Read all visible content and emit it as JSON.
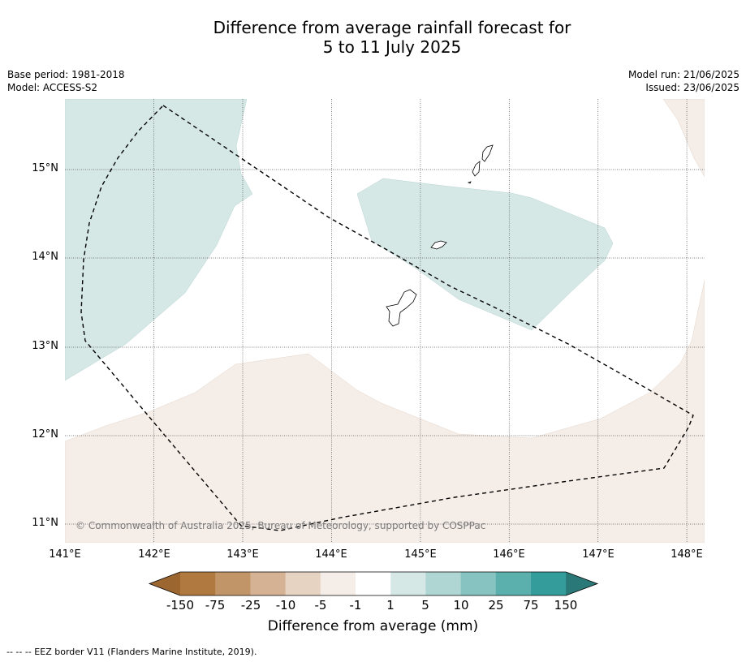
{
  "title": {
    "line1": "Difference from average rainfall forecast for",
    "line2": "5 to 11 July 2025"
  },
  "meta": {
    "base_period": "Base period: 1981-2018",
    "model": "Model: ACCESS-S2",
    "model_run": "Model run: 21/06/2025",
    "issued": "Issued: 23/06/2025"
  },
  "map": {
    "lat_labels": [
      "15°N",
      "14°N",
      "13°N",
      "12°N",
      "11°N"
    ],
    "lon_labels": [
      "141°E",
      "142°E",
      "143°E",
      "144°E",
      "145°E",
      "146°E",
      "147°E",
      "148°E"
    ],
    "copyright": "© Commonwealth of Australia 2025, Bureau of Meteorology, supported by COSPPac",
    "colors": {
      "dry_light": "#f5ede8",
      "wet_light": "#d5e8e6",
      "eez_border": "#000000"
    }
  },
  "colorbar": {
    "ticks": [
      "-150",
      "-75",
      "-25",
      "-10",
      "-5",
      "-1",
      "1",
      "5",
      "10",
      "25",
      "75",
      "150"
    ],
    "colors": [
      "#9c6630",
      "#b07940",
      "#c19567",
      "#d4b293",
      "#e7d3c2",
      "#f5ede8",
      "#ffffff",
      "#d5e8e6",
      "#b0d6d3",
      "#87c3c0",
      "#5bb0ad",
      "#349c9a",
      "#2a7877"
    ],
    "label": "Difference from average (mm)"
  },
  "footnote": "--  --  -- EEZ border V11 (Flanders Marine Institute, 2019)."
}
